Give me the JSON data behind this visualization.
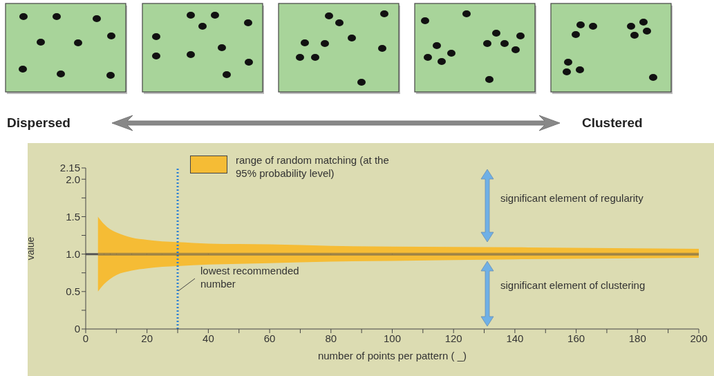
{
  "chart_data": {
    "type": "line",
    "xlabel": "number of points per pattern ( _)",
    "ylabel": "value",
    "xlim": [
      0,
      200
    ],
    "ylim": [
      0,
      2.15
    ],
    "xticks": [
      0,
      {
        "value": 10,
        "label": null
      },
      20,
      {
        "value": 30,
        "label": null
      },
      40,
      {
        "value": 50,
        "label": null
      },
      60,
      {
        "value": 70,
        "label": null
      },
      80,
      {
        "value": 90,
        "label": null
      },
      100,
      {
        "value": 110,
        "label": null
      },
      120,
      {
        "value": 130,
        "label": null
      },
      140,
      {
        "value": 150,
        "label": null
      },
      160,
      {
        "value": 170,
        "label": null
      },
      180,
      {
        "value": 190,
        "label": null
      },
      200
    ],
    "yticks": [
      0,
      {
        "value": 0.25,
        "label": null
      },
      0.5,
      {
        "value": 0.75,
        "label": null
      },
      {
        "value": 1,
        "label": "1.0"
      },
      {
        "value": 1.25,
        "label": null
      },
      1.5,
      {
        "value": 1.75,
        "label": null
      },
      {
        "value": 2,
        "label": "2.0"
      },
      2.15
    ],
    "series": [
      {
        "name": "range of random matching (at the 95% probability level)",
        "color": "#f5bc35",
        "x": [
          4,
          6,
          8,
          10,
          15,
          20,
          25,
          30,
          40,
          60,
          80,
          100,
          140,
          200
        ],
        "values": [
          1,
          1,
          1,
          1,
          1,
          1,
          1,
          1,
          1,
          1,
          1,
          1,
          1,
          1
        ],
        "lower": [
          0.5,
          0.6,
          0.67,
          0.72,
          0.78,
          0.81,
          0.83,
          0.84,
          0.86,
          0.88,
          0.9,
          0.91,
          0.93,
          0.95
        ],
        "upper": [
          1.5,
          1.4,
          1.33,
          1.29,
          1.22,
          1.19,
          1.17,
          1.16,
          1.14,
          1.13,
          1.11,
          1.1,
          1.09,
          1.07
        ]
      }
    ],
    "ref_lines": [
      {
        "axis": "x",
        "value": 30,
        "label": "lowest recommended number",
        "color": "#2a7fd4",
        "line_style": "dotted"
      },
      {
        "axis": "y",
        "value": 1,
        "color": "#555555",
        "line_style": "solid"
      }
    ],
    "legend": "top",
    "annotations": [
      "Dispersed",
      "Clustered",
      "significant element of regularity",
      "significant element of clustering"
    ]
  }
}
